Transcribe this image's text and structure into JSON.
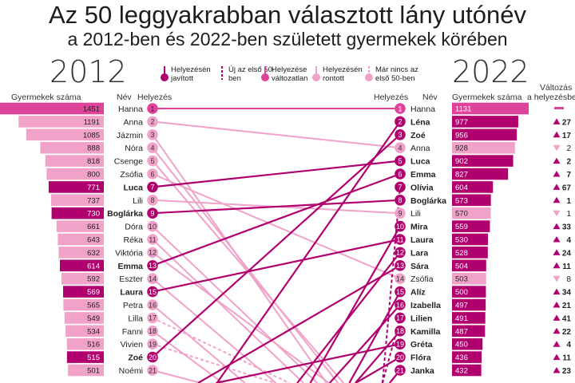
{
  "header": {
    "title": "Az 50 leggyakrabban választott lány utónév",
    "subtitle": "a 2012-ben és 2022-ben született gyermekek körében",
    "year_left": "2012",
    "year_right": "2022"
  },
  "column_headers": {
    "count_left": "Gyermekek száma",
    "name_left": "Név",
    "rank_left": "Helyezés",
    "rank_right": "Helyezés",
    "name_right": "Név",
    "count_right": "Gyermekek száma",
    "change_line1": "Változás",
    "change_line2": "a helyezésben"
  },
  "legend": [
    {
      "key": "improved",
      "label": "Helyezésén javított",
      "color": "#b0006e"
    },
    {
      "key": "new",
      "label": "Új az első 50-ben",
      "color": "#b0006e"
    },
    {
      "key": "unchanged",
      "label": "Helyezése változatlan",
      "color": "#e0449a"
    },
    {
      "key": "worsened",
      "label": "Helyezésén rontott",
      "color": "#f0a2c9"
    },
    {
      "key": "dropped",
      "label": "Már nincs az első 50-ben",
      "color": "#f0a2c9"
    }
  ],
  "colors": {
    "improved": "#b0006e",
    "unchanged": "#e0449a",
    "worsened": "#f0a2c9",
    "change_up": "#b0006e",
    "change_down": "#f0a2c9",
    "change_same": "#e0449a"
  },
  "chart_data": {
    "type": "slope",
    "title": "Az 50 leggyakrabban választott lány utónév",
    "subtitle": "a 2012-ben és 2022-ben született gyermekek körében",
    "left": {
      "year": "2012",
      "rows": [
        {
          "rank": 1,
          "name": "Hanna",
          "count": 1451,
          "status": "unchanged",
          "target_rank": 1
        },
        {
          "rank": 2,
          "name": "Anna",
          "count": 1191,
          "status": "worsened",
          "target_rank": 4
        },
        {
          "rank": 3,
          "name": "Jázmin",
          "count": 1085,
          "status": "worsened",
          "target_rank": 30
        },
        {
          "rank": 4,
          "name": "Nóra",
          "count": 888,
          "status": "worsened",
          "target_rank": 28
        },
        {
          "rank": 5,
          "name": "Csenge",
          "count": 818,
          "status": "worsened",
          "target_rank": 27
        },
        {
          "rank": 6,
          "name": "Zsófia",
          "count": 800,
          "status": "worsened",
          "target_rank": 14
        },
        {
          "rank": 7,
          "name": "Luca",
          "count": 771,
          "status": "improved",
          "target_rank": 5
        },
        {
          "rank": 8,
          "name": "Lili",
          "count": 737,
          "status": "worsened",
          "target_rank": 9
        },
        {
          "rank": 9,
          "name": "Boglárka",
          "count": 730,
          "status": "improved",
          "target_rank": 8
        },
        {
          "rank": 10,
          "name": "Dóra",
          "count": 661,
          "status": "worsened",
          "target_rank": 28
        },
        {
          "rank": 11,
          "name": "Réka",
          "count": 643,
          "status": "worsened",
          "target_rank": 29
        },
        {
          "rank": 12,
          "name": "Viktória",
          "count": 632,
          "status": "worsened",
          "target_rank": 26
        },
        {
          "rank": 13,
          "name": "Emma",
          "count": 614,
          "status": "improved",
          "target_rank": 6
        },
        {
          "rank": 14,
          "name": "Eszter",
          "count": 592,
          "status": "worsened",
          "target_rank": 30
        },
        {
          "rank": 15,
          "name": "Laura",
          "count": 569,
          "status": "improved",
          "target_rank": 11
        },
        {
          "rank": 16,
          "name": "Petra",
          "count": 565,
          "status": "worsened",
          "target_rank": 32
        },
        {
          "rank": 17,
          "name": "Lilla",
          "count": 549,
          "status": "dropped",
          "target_rank": 26
        },
        {
          "rank": 18,
          "name": "Fanni",
          "count": 534,
          "status": "worsened",
          "target_rank": 32
        },
        {
          "rank": 19,
          "name": "Vivien",
          "count": 516,
          "status": "dropped",
          "target_rank": 25
        },
        {
          "rank": 20,
          "name": "Zoé",
          "count": 515,
          "status": "improved",
          "target_rank": 3
        },
        {
          "rank": 21,
          "name": "Noémi",
          "count": 501,
          "status": "worsened",
          "target_rank": 26
        }
      ]
    },
    "right": {
      "year": "2022",
      "rows": [
        {
          "rank": 1,
          "name": "Hanna",
          "count": 1131,
          "status": "unchanged",
          "change": "",
          "change_dir": "same"
        },
        {
          "rank": 2,
          "name": "Léna",
          "count": 977,
          "status": "improved",
          "change": "27",
          "change_dir": "up",
          "source_rank": 29
        },
        {
          "rank": 3,
          "name": "Zoé",
          "count": 956,
          "status": "improved",
          "change": "17",
          "change_dir": "up",
          "source_rank": 20
        },
        {
          "rank": 4,
          "name": "Anna",
          "count": 928,
          "status": "worsened",
          "change": "2",
          "change_dir": "down",
          "source_rank": 2
        },
        {
          "rank": 5,
          "name": "Luca",
          "count": 902,
          "status": "improved",
          "change": "2",
          "change_dir": "up",
          "source_rank": 7
        },
        {
          "rank": 6,
          "name": "Emma",
          "count": 827,
          "status": "improved",
          "change": "7",
          "change_dir": "up",
          "source_rank": 13
        },
        {
          "rank": 7,
          "name": "Olívia",
          "count": 604,
          "status": "new",
          "change": "67",
          "change_dir": "up"
        },
        {
          "rank": 8,
          "name": "Boglárka",
          "count": 573,
          "status": "improved",
          "change": "1",
          "change_dir": "up",
          "source_rank": 9
        },
        {
          "rank": 9,
          "name": "Lili",
          "count": 570,
          "status": "worsened",
          "change": "1",
          "change_dir": "down",
          "source_rank": 8
        },
        {
          "rank": 10,
          "name": "Mira",
          "count": 559,
          "status": "improved",
          "change": "33",
          "change_dir": "up",
          "source_rank": 43
        },
        {
          "rank": 11,
          "name": "Laura",
          "count": 530,
          "status": "improved",
          "change": "4",
          "change_dir": "up",
          "source_rank": 15
        },
        {
          "rank": 12,
          "name": "Lara",
          "count": 528,
          "status": "improved",
          "change": "24",
          "change_dir": "up",
          "source_rank": 36
        },
        {
          "rank": 13,
          "name": "Sára",
          "count": 504,
          "status": "improved",
          "change": "11",
          "change_dir": "up",
          "source_rank": 24
        },
        {
          "rank": 14,
          "name": "Zsófia",
          "count": 503,
          "status": "worsened",
          "change": "8",
          "change_dir": "down",
          "source_rank": 6
        },
        {
          "rank": 15,
          "name": "Alíz",
          "count": 500,
          "status": "improved",
          "change": "34",
          "change_dir": "up",
          "source_rank": 49
        },
        {
          "rank": 16,
          "name": "Izabella",
          "count": 497,
          "status": "improved",
          "change": "21",
          "change_dir": "up",
          "source_rank": 37
        },
        {
          "rank": 17,
          "name": "Lilien",
          "count": 491,
          "status": "new",
          "change": "41",
          "change_dir": "up"
        },
        {
          "rank": 18,
          "name": "Kamilla",
          "count": 487,
          "status": "improved",
          "change": "22",
          "change_dir": "up",
          "source_rank": 40
        },
        {
          "rank": 19,
          "name": "Gréta",
          "count": 450,
          "status": "improved",
          "change": "4",
          "change_dir": "up",
          "source_rank": 23
        },
        {
          "rank": 20,
          "name": "Flóra",
          "count": 436,
          "status": "improved",
          "change": "11",
          "change_dir": "up",
          "source_rank": 31
        },
        {
          "rank": 21,
          "name": "Janka",
          "count": 432,
          "status": "improved",
          "change": "23",
          "change_dir": "up",
          "source_rank": 44
        }
      ]
    }
  }
}
